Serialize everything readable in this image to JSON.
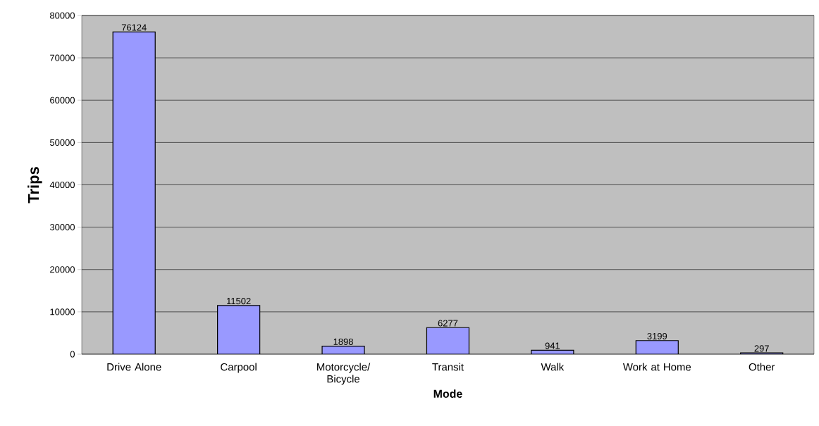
{
  "chart_data": {
    "type": "bar",
    "xlabel": "Mode",
    "ylabel": "Trips",
    "categories": [
      "Drive Alone",
      "Carpool",
      "Motorcycle/ Bicycle",
      "Transit",
      "Walk",
      "Work at Home",
      "Other"
    ],
    "values": [
      76124,
      11502,
      1898,
      6277,
      941,
      3199,
      297
    ],
    "color": "#9999ff",
    "ylim": [
      0,
      80000
    ],
    "yticks": [
      0,
      10000,
      20000,
      30000,
      40000,
      50000,
      60000,
      70000,
      80000
    ],
    "grid": "y",
    "data_labels": true
  }
}
